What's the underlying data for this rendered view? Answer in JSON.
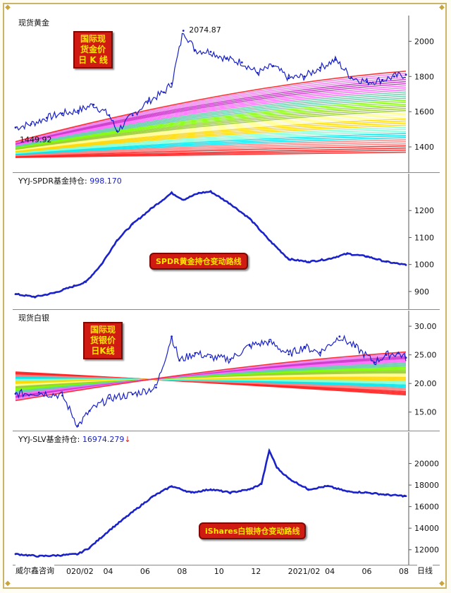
{
  "panels": {
    "gold": {
      "title": "现货黄金",
      "badge": [
        "国际现",
        "货金价",
        "日 K 线"
      ],
      "max_label": "2074.87",
      "min_label": "1449.92"
    },
    "spdr": {
      "title_prefix": "YYJ-SPDR基金持仓: ",
      "value": "998.170",
      "tag": "SPDR黄金持仓变动路线"
    },
    "silver": {
      "title": "现货白银",
      "badge": [
        "国际现",
        "货银价",
        "日K线"
      ]
    },
    "slv": {
      "title_prefix": "YYJ-SLV基金持仓: ",
      "value": "16974.279",
      "arrow": "↓",
      "tag": "iShares白银持仓变动路线"
    }
  },
  "footer": {
    "watermark": "威尔鑫咨询",
    "period": "日线"
  },
  "colors": {
    "price": "#1a22c8",
    "badge": "#d01b12",
    "badge_text": "#ffe600"
  },
  "chart_data": [
    {
      "type": "line",
      "title": "现货黄金",
      "ylim": [
        1280,
        2090
      ],
      "yticks": [
        1400,
        1600,
        1800,
        2000
      ],
      "annotations": [
        {
          "text": "2074.87",
          "x": 0.43,
          "y": 2074.87
        },
        {
          "text": "1449.92",
          "x": 0.0,
          "y": 1449.92
        }
      ],
      "x": [
        0,
        0.04,
        0.08,
        0.12,
        0.16,
        0.2,
        0.24,
        0.26,
        0.3,
        0.34,
        0.38,
        0.4,
        0.43,
        0.46,
        0.5,
        0.54,
        0.58,
        0.62,
        0.66,
        0.7,
        0.74,
        0.78,
        0.82,
        0.86,
        0.9,
        0.94,
        0.97,
        1.0
      ],
      "values": [
        1510,
        1530,
        1565,
        1590,
        1605,
        1640,
        1580,
        1490,
        1580,
        1660,
        1710,
        1760,
        2060,
        1950,
        1940,
        1900,
        1880,
        1820,
        1860,
        1790,
        1800,
        1850,
        1895,
        1795,
        1770,
        1780,
        1800,
        1810
      ]
    },
    {
      "type": "line",
      "title": "YYJ-SPDR基金持仓",
      "ylim": [
        850,
        1300
      ],
      "yticks": [
        900,
        1000,
        1100,
        1200
      ],
      "x": [
        0,
        0.05,
        0.1,
        0.15,
        0.18,
        0.22,
        0.26,
        0.3,
        0.35,
        0.4,
        0.43,
        0.47,
        0.5,
        0.55,
        0.6,
        0.65,
        0.7,
        0.75,
        0.8,
        0.85,
        0.9,
        0.95,
        1.0
      ],
      "values": [
        890,
        880,
        895,
        920,
        935,
        1000,
        1090,
        1150,
        1210,
        1265,
        1240,
        1265,
        1270,
        1225,
        1170,
        1090,
        1020,
        1010,
        1020,
        1040,
        1030,
        1010,
        998.17
      ]
    },
    {
      "type": "line",
      "title": "现货白银",
      "ylim": [
        12.5,
        31
      ],
      "yticks": [
        15,
        20,
        25,
        30
      ],
      "x": [
        0,
        0.06,
        0.12,
        0.16,
        0.19,
        0.24,
        0.3,
        0.36,
        0.4,
        0.42,
        0.46,
        0.5,
        0.55,
        0.6,
        0.65,
        0.7,
        0.74,
        0.78,
        0.83,
        0.87,
        0.92,
        0.95,
        0.98,
        1.0
      ],
      "values": [
        18.2,
        18.4,
        17.9,
        12.6,
        15.2,
        17.4,
        18.1,
        19.3,
        28.2,
        24,
        25.3,
        24.6,
        24.2,
        26.6,
        27.3,
        25.1,
        26.4,
        25.4,
        28.2,
        26.4,
        23.7,
        25,
        25.3,
        24.5
      ]
    },
    {
      "type": "line",
      "title": "YYJ-SLV基金持仓",
      "ylim": [
        11000,
        22000
      ],
      "yticks": [
        12000,
        14000,
        16000,
        18000,
        20000
      ],
      "x": [
        0,
        0.06,
        0.12,
        0.16,
        0.19,
        0.24,
        0.3,
        0.35,
        0.4,
        0.45,
        0.5,
        0.55,
        0.6,
        0.63,
        0.65,
        0.67,
        0.7,
        0.75,
        0.8,
        0.85,
        0.9,
        0.95,
        1.0
      ],
      "values": [
        11600,
        11400,
        11500,
        11600,
        12200,
        13800,
        15500,
        16900,
        17900,
        17300,
        17600,
        17300,
        17600,
        18100,
        21200,
        19600,
        18600,
        17600,
        17900,
        17400,
        17300,
        17100,
        16974.3
      ]
    }
  ],
  "x_tick_labels": [
    "020/02",
    "04",
    "06",
    "08",
    "10",
    "12",
    "2021/02",
    "04",
    "06",
    "08"
  ]
}
